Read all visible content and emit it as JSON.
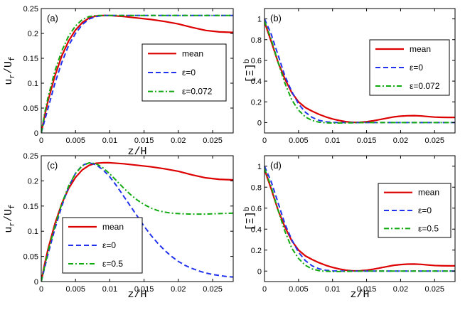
{
  "colors": {
    "mean": "#dd0000",
    "eps0": "#2233ee",
    "eps": "#11aa11",
    "axis": "#000000"
  },
  "chart_data": [
    {
      "type": "line",
      "panel": "(a)",
      "xlabel": "z/H",
      "ylabel": "u_r/U_f",
      "xlim": [
        0,
        0.028
      ],
      "ylim": [
        0,
        0.25
      ],
      "xticks": [
        "0",
        "0.005",
        "0.01",
        "0.015",
        "0.02",
        "0.025"
      ],
      "yticks": [
        "0",
        "0.05",
        "0.1",
        "0.15",
        "0.2",
        "0.25"
      ],
      "legend_position": "right-middle",
      "series": [
        {
          "name": "mean",
          "style": "solid",
          "x": [
            0,
            0.0005,
            0.001,
            0.002,
            0.003,
            0.004,
            0.005,
            0.006,
            0.007,
            0.008,
            0.009,
            0.01,
            0.012,
            0.014,
            0.016,
            0.018,
            0.02,
            0.022,
            0.024,
            0.026,
            0.028
          ],
          "y": [
            0,
            0.035,
            0.065,
            0.115,
            0.155,
            0.185,
            0.207,
            0.222,
            0.231,
            0.235,
            0.236,
            0.236,
            0.234,
            0.231,
            0.228,
            0.224,
            0.219,
            0.212,
            0.206,
            0.203,
            0.202
          ]
        },
        {
          "name": "ε=0",
          "style": "dashed",
          "x": [
            0,
            0.0005,
            0.001,
            0.002,
            0.003,
            0.004,
            0.005,
            0.006,
            0.007,
            0.008,
            0.009,
            0.01,
            0.015,
            0.02,
            0.025,
            0.028
          ],
          "y": [
            0,
            0.025,
            0.05,
            0.1,
            0.142,
            0.176,
            0.2,
            0.218,
            0.229,
            0.234,
            0.236,
            0.236,
            0.236,
            0.236,
            0.236,
            0.236
          ]
        },
        {
          "name": "ε=0.072",
          "style": "dashdot",
          "x": [
            0,
            0.0005,
            0.001,
            0.002,
            0.003,
            0.004,
            0.005,
            0.006,
            0.007,
            0.008,
            0.009,
            0.01,
            0.015,
            0.02,
            0.025,
            0.028
          ],
          "y": [
            0,
            0.04,
            0.072,
            0.125,
            0.165,
            0.195,
            0.215,
            0.228,
            0.234,
            0.236,
            0.236,
            0.236,
            0.236,
            0.236,
            0.236,
            0.236
          ]
        }
      ]
    },
    {
      "type": "line",
      "panel": "(b)",
      "xlabel": "",
      "ylabel": "[Ξ]b",
      "xlim": [
        0,
        0.028
      ],
      "ylim": [
        -0.1,
        1.1
      ],
      "xticks": [
        "0",
        "0.005",
        "0.01",
        "0.015",
        "0.02",
        "0.025"
      ],
      "yticks": [
        "0",
        "0.2",
        "0.4",
        "0.6",
        "0.8",
        "1"
      ],
      "legend_position": "top-right",
      "series": [
        {
          "name": "mean",
          "style": "solid",
          "x": [
            0,
            0.001,
            0.002,
            0.003,
            0.004,
            0.005,
            0.006,
            0.007,
            0.008,
            0.009,
            0.01,
            0.011,
            0.012,
            0.013,
            0.014,
            0.015,
            0.016,
            0.017,
            0.018,
            0.019,
            0.02,
            0.021,
            0.022,
            0.023,
            0.024,
            0.025,
            0.026,
            0.027,
            0.028
          ],
          "y": [
            0.97,
            0.78,
            0.58,
            0.42,
            0.29,
            0.2,
            0.145,
            0.11,
            0.08,
            0.055,
            0.035,
            0.02,
            0.008,
            0.002,
            0.003,
            0.008,
            0.018,
            0.03,
            0.043,
            0.055,
            0.062,
            0.066,
            0.067,
            0.064,
            0.058,
            0.053,
            0.051,
            0.05,
            0.05
          ]
        },
        {
          "name": "ε=0",
          "style": "dashed",
          "x": [
            0,
            0.001,
            0.002,
            0.003,
            0.004,
            0.005,
            0.006,
            0.007,
            0.008,
            0.009,
            0.01,
            0.011,
            0.012,
            0.013,
            0.014,
            0.015,
            0.02,
            0.025,
            0.028
          ],
          "y": [
            1.0,
            0.85,
            0.65,
            0.45,
            0.3,
            0.18,
            0.1,
            0.05,
            0.022,
            0.008,
            0.002,
            0.0,
            0.0,
            0.0,
            0.0,
            0.0,
            0.0,
            0.0,
            0.0
          ]
        },
        {
          "name": "ε=0.072",
          "style": "dashdot",
          "x": [
            0,
            0.001,
            0.002,
            0.003,
            0.004,
            0.005,
            0.006,
            0.007,
            0.008,
            0.009,
            0.01,
            0.011,
            0.012,
            0.013,
            0.014,
            0.015,
            0.02,
            0.025,
            0.028
          ],
          "y": [
            0.98,
            0.8,
            0.58,
            0.38,
            0.22,
            0.12,
            0.055,
            0.02,
            0.004,
            -0.002,
            -0.004,
            -0.004,
            -0.003,
            -0.002,
            -0.001,
            0.0,
            0.0,
            0.0,
            0.0
          ]
        }
      ]
    },
    {
      "type": "line",
      "panel": "(c)",
      "xlabel": "z/H",
      "ylabel": "u_r/U_f",
      "xlim": [
        0,
        0.028
      ],
      "ylim": [
        0,
        0.25
      ],
      "xticks": [
        "0",
        "0.005",
        "0.01",
        "0.015",
        "0.02",
        "0.025"
      ],
      "yticks": [
        "0",
        "0.05",
        "0.1",
        "0.15",
        "0.2",
        "0.25"
      ],
      "legend_position": "bottom-left",
      "series": [
        {
          "name": "mean",
          "style": "solid",
          "x": [
            0,
            0.0005,
            0.001,
            0.002,
            0.003,
            0.004,
            0.005,
            0.006,
            0.007,
            0.008,
            0.009,
            0.01,
            0.012,
            0.014,
            0.016,
            0.018,
            0.02,
            0.022,
            0.024,
            0.026,
            0.028
          ],
          "y": [
            0,
            0.035,
            0.065,
            0.115,
            0.155,
            0.185,
            0.207,
            0.222,
            0.231,
            0.235,
            0.236,
            0.236,
            0.234,
            0.231,
            0.228,
            0.224,
            0.219,
            0.212,
            0.206,
            0.203,
            0.202
          ]
        },
        {
          "name": "ε=0",
          "style": "dashed",
          "x": [
            0,
            0.001,
            0.002,
            0.003,
            0.004,
            0.005,
            0.006,
            0.007,
            0.008,
            0.009,
            0.01,
            0.011,
            0.012,
            0.013,
            0.014,
            0.015,
            0.016,
            0.017,
            0.018,
            0.019,
            0.02,
            0.021,
            0.022,
            0.023,
            0.024,
            0.025,
            0.026,
            0.027,
            0.028
          ],
          "y": [
            0,
            0.055,
            0.105,
            0.15,
            0.188,
            0.215,
            0.231,
            0.236,
            0.232,
            0.222,
            0.208,
            0.19,
            0.17,
            0.15,
            0.13,
            0.11,
            0.092,
            0.076,
            0.062,
            0.05,
            0.04,
            0.032,
            0.026,
            0.021,
            0.017,
            0.014,
            0.012,
            0.01,
            0.009
          ]
        },
        {
          "name": "ε=0.5",
          "style": "dashdot",
          "x": [
            0,
            0.001,
            0.002,
            0.003,
            0.004,
            0.005,
            0.006,
            0.007,
            0.008,
            0.009,
            0.01,
            0.011,
            0.012,
            0.013,
            0.014,
            0.015,
            0.016,
            0.017,
            0.018,
            0.019,
            0.02,
            0.022,
            0.024,
            0.026,
            0.028
          ],
          "y": [
            0,
            0.06,
            0.11,
            0.155,
            0.19,
            0.215,
            0.23,
            0.236,
            0.234,
            0.226,
            0.214,
            0.2,
            0.186,
            0.173,
            0.162,
            0.153,
            0.146,
            0.141,
            0.138,
            0.136,
            0.135,
            0.134,
            0.134,
            0.135,
            0.136
          ]
        }
      ]
    },
    {
      "type": "line",
      "panel": "(d)",
      "xlabel": "z/H",
      "ylabel": "[Ξ]b",
      "xlim": [
        0,
        0.028
      ],
      "ylim": [
        -0.1,
        1.1
      ],
      "xticks": [
        "0",
        "0.005",
        "0.01",
        "0.015",
        "0.02",
        "0.025"
      ],
      "yticks": [
        "0",
        "0.2",
        "0.4",
        "0.6",
        "0.8",
        "1"
      ],
      "legend_position": "right-middle",
      "series": [
        {
          "name": "mean",
          "style": "solid",
          "x": [
            0,
            0.001,
            0.002,
            0.003,
            0.004,
            0.005,
            0.006,
            0.007,
            0.008,
            0.009,
            0.01,
            0.011,
            0.012,
            0.013,
            0.014,
            0.015,
            0.016,
            0.017,
            0.018,
            0.019,
            0.02,
            0.021,
            0.022,
            0.023,
            0.024,
            0.025,
            0.026,
            0.027,
            0.028
          ],
          "y": [
            0.97,
            0.78,
            0.58,
            0.42,
            0.29,
            0.2,
            0.145,
            0.11,
            0.08,
            0.055,
            0.035,
            0.02,
            0.008,
            0.002,
            0.003,
            0.008,
            0.018,
            0.03,
            0.043,
            0.055,
            0.062,
            0.066,
            0.067,
            0.064,
            0.058,
            0.053,
            0.051,
            0.05,
            0.05
          ]
        },
        {
          "name": "ε=0",
          "style": "dashed",
          "x": [
            0,
            0.001,
            0.002,
            0.003,
            0.004,
            0.005,
            0.006,
            0.007,
            0.008,
            0.009,
            0.01,
            0.011,
            0.012,
            0.013,
            0.014,
            0.015,
            0.02,
            0.025,
            0.028
          ],
          "y": [
            1.0,
            0.85,
            0.65,
            0.45,
            0.3,
            0.18,
            0.1,
            0.05,
            0.022,
            0.008,
            0.002,
            0.0,
            0.0,
            0.0,
            0.0,
            0.0,
            0.0,
            0.0,
            0.0
          ]
        },
        {
          "name": "ε=0.5",
          "style": "dashdot",
          "x": [
            0,
            0.001,
            0.002,
            0.003,
            0.004,
            0.005,
            0.006,
            0.007,
            0.008,
            0.009,
            0.01,
            0.011,
            0.012,
            0.013,
            0.014,
            0.015,
            0.02,
            0.025,
            0.028
          ],
          "y": [
            0.98,
            0.8,
            0.58,
            0.38,
            0.22,
            0.12,
            0.055,
            0.02,
            0.004,
            -0.002,
            -0.004,
            -0.004,
            -0.003,
            -0.002,
            -0.001,
            0.0,
            0.0,
            0.0,
            0.0
          ]
        }
      ]
    }
  ]
}
